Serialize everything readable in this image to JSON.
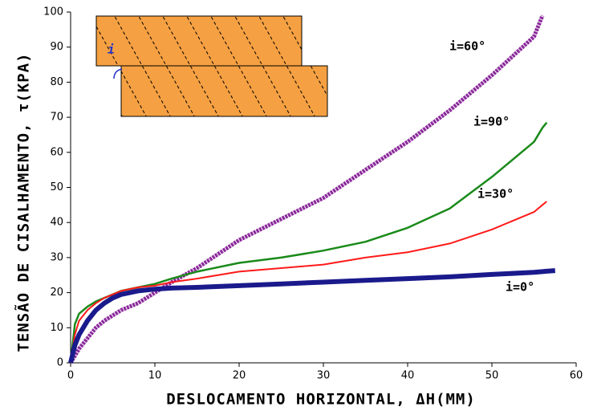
{
  "chart_data": {
    "type": "line",
    "xlabel": "DESLOCAMENTO HORIZONTAL, ΔH(MM)",
    "ylabel": "TENSÃO DE CISALHAMENTO, τ(KPA)",
    "inset_label": "i",
    "x": [
      0,
      0.5,
      1,
      2,
      3,
      4,
      5,
      6,
      8,
      10,
      12,
      15,
      20,
      25,
      30,
      35,
      40,
      45,
      50,
      55,
      56,
      56.5,
      57.5
    ],
    "series": [
      {
        "name": "i=60°",
        "color": "#8b2a9b",
        "values": [
          0,
          2,
          4,
          7,
          10,
          12,
          13.5,
          15,
          17,
          20,
          23,
          27,
          35,
          41,
          47,
          55,
          63,
          72,
          82,
          93,
          99,
          null,
          null
        ]
      },
      {
        "name": "i=90°",
        "color": "#1a8a1a",
        "values": [
          0,
          11,
          14,
          16,
          17.5,
          18.5,
          19.5,
          20.5,
          21.5,
          22.5,
          24,
          26,
          28.5,
          30,
          32,
          34.5,
          38.5,
          44,
          53,
          63,
          67,
          68.5,
          null
        ]
      },
      {
        "name": "i=30°",
        "color": "#ff1a1a",
        "values": [
          0,
          8,
          12,
          15,
          17,
          18.5,
          19.5,
          20.5,
          21.5,
          22,
          23,
          24,
          26,
          27,
          28,
          30,
          31.5,
          34,
          38,
          43,
          45,
          46,
          null
        ]
      },
      {
        "name": "i=0°",
        "color": "#1a1a8c",
        "values": [
          0,
          5,
          8,
          12,
          15,
          17,
          18.5,
          19.5,
          20.5,
          21,
          21.3,
          21.5,
          22,
          22.5,
          23,
          23.5,
          24,
          24.5,
          25.2,
          25.8,
          26,
          26.1,
          26.3
        ]
      }
    ],
    "xlim": [
      0,
      60
    ],
    "xticks": [
      0,
      10,
      20,
      30,
      40,
      50,
      60
    ],
    "ylim": [
      0,
      100
    ],
    "yticks": [
      0,
      10,
      20,
      30,
      40,
      50,
      60,
      70,
      80,
      90,
      100
    ],
    "grid": false
  }
}
